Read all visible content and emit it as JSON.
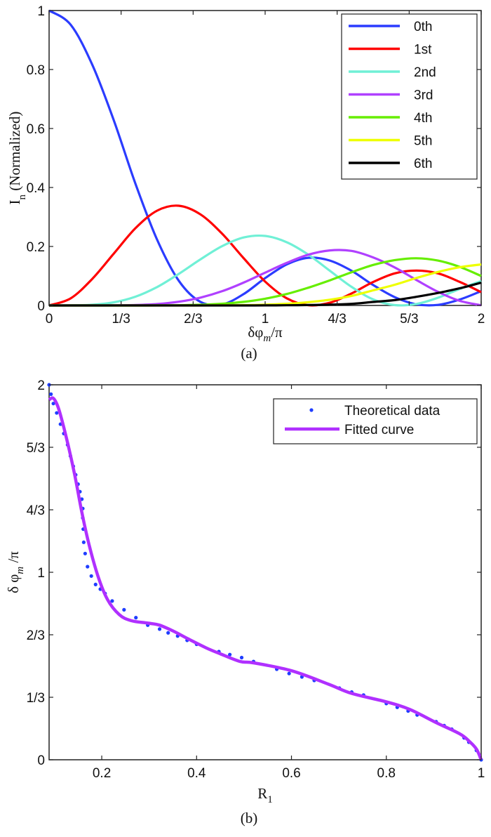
{
  "chart_data": [
    {
      "type": "line",
      "panel_label": "(a)",
      "xlabel": {
        "main": "δφ",
        "sub": "m",
        "rest": "/π"
      },
      "ylabel": {
        "main": "I",
        "sub": "n",
        "rest": " (Normalized)"
      },
      "xlim": [
        0,
        2
      ],
      "ylim": [
        0,
        1
      ],
      "grid": false,
      "legend_position": "top-right",
      "x_ticks": [
        {
          "value": 0,
          "label": "0"
        },
        {
          "value": 0.3333,
          "label": "1/3"
        },
        {
          "value": 0.6667,
          "label": "2/3"
        },
        {
          "value": 1,
          "label": "1"
        },
        {
          "value": 1.3333,
          "label": "4/3"
        },
        {
          "value": 1.6667,
          "label": "5/3"
        },
        {
          "value": 2,
          "label": "2"
        }
      ],
      "y_ticks": [
        {
          "value": 0,
          "label": "0"
        },
        {
          "value": 0.2,
          "label": "0.2"
        },
        {
          "value": 0.4,
          "label": "0.4"
        },
        {
          "value": 0.6,
          "label": "0.6"
        },
        {
          "value": 0.8,
          "label": "0.8"
        },
        {
          "value": 1,
          "label": "1"
        }
      ],
      "x": [
        0,
        0.1,
        0.2,
        0.3,
        0.4,
        0.5,
        0.6,
        0.7,
        0.8,
        0.9,
        1.0,
        1.1,
        1.2,
        1.3,
        1.4,
        1.5,
        1.6,
        1.7,
        1.8,
        1.9,
        2.0
      ],
      "series": [
        {
          "name": "0th",
          "color": "#2b3cff",
          "values": [
            1,
            0.9516,
            0.816,
            0.6266,
            0.4122,
            0.2228,
            0.0841,
            0.0123,
            0.003,
            0.0384,
            0.0925,
            0.1391,
            0.1616,
            0.1521,
            0.1176,
            0.0692,
            0.0282,
            0.0038,
            0.002,
            0.0199,
            0.0485
          ]
        },
        {
          "name": "1st",
          "color": "#ff0000",
          "values": [
            0,
            0.0241,
            0.0902,
            0.1764,
            0.2621,
            0.3215,
            0.3381,
            0.3091,
            0.244,
            0.1608,
            0.081,
            0.0243,
            0.0006,
            0.0094,
            0.0408,
            0.0795,
            0.1089,
            0.1183,
            0.1089,
            0.0801,
            0.0451
          ]
        },
        {
          "name": "2nd",
          "color": "#70f0d6",
          "values": [
            0,
            0.0002,
            0.0023,
            0.0106,
            0.0298,
            0.0625,
            0.1069,
            0.156,
            0.2007,
            0.2304,
            0.2356,
            0.2144,
            0.1722,
            0.1173,
            0.063,
            0.0205,
            0.0013,
            0.0049,
            0.0262,
            0.0557,
            0.0829
          ]
        },
        {
          "name": "3rd",
          "color": "#b040ff",
          "values": [
            0,
            0,
            0,
            0.0003,
            0.0014,
            0.0048,
            0.0126,
            0.0264,
            0.048,
            0.0773,
            0.1112,
            0.1444,
            0.1722,
            0.1866,
            0.1849,
            0.1629,
            0.1289,
            0.0864,
            0.0462,
            0.0156,
            0.0008
          ]
        },
        {
          "name": "4th",
          "color": "#66ee00",
          "values": [
            0,
            0,
            0,
            0,
            0,
            0.0002,
            0.0008,
            0.0023,
            0.0056,
            0.0121,
            0.0229,
            0.0388,
            0.0603,
            0.0853,
            0.1126,
            0.1373,
            0.1537,
            0.16,
            0.1521,
            0.131,
            0.0999
          ]
        },
        {
          "name": "5th",
          "color": "#eeff00",
          "values": [
            0,
            0,
            0,
            0,
            0,
            0,
            0,
            0.0001,
            0.0004,
            0.0011,
            0.0028,
            0.0058,
            0.0112,
            0.0196,
            0.0324,
            0.0511,
            0.0702,
            0.093,
            0.1136,
            0.1296,
            0.1391
          ]
        },
        {
          "name": "6th",
          "color": "#000000",
          "values": [
            0,
            0,
            0,
            0,
            0,
            0,
            0,
            0,
            0,
            0,
            0.0002,
            0.0006,
            0.0014,
            0.0026,
            0.0054,
            0.0119,
            0.0182,
            0.0292,
            0.0424,
            0.0581,
            0.0773
          ]
        }
      ]
    },
    {
      "type": "scatter",
      "panel_label": "(b)",
      "xlabel": {
        "main": "R",
        "sub": "1",
        "rest": ""
      },
      "ylabel": {
        "main": "δ φ",
        "sub": "m",
        "rest": " /π"
      },
      "xlim": [
        0.089,
        1
      ],
      "ylim": [
        0,
        2
      ],
      "grid": false,
      "legend_position": "top-right",
      "x_ticks": [
        {
          "value": 0.2,
          "label": "0.2"
        },
        {
          "value": 0.4,
          "label": "0.4"
        },
        {
          "value": 0.6,
          "label": "0.6"
        },
        {
          "value": 0.8,
          "label": "0.8"
        },
        {
          "value": 1,
          "label": "1"
        }
      ],
      "y_ticks": [
        {
          "value": 0,
          "label": "0"
        },
        {
          "value": 0.3333,
          "label": "1/3"
        },
        {
          "value": 0.6667,
          "label": "2/3"
        },
        {
          "value": 1,
          "label": "1"
        },
        {
          "value": 1.3333,
          "label": "4/3"
        },
        {
          "value": 1.6667,
          "label": "5/3"
        },
        {
          "value": 2,
          "label": "2"
        }
      ],
      "series": [
        {
          "name": "Theoretical data",
          "style": "dots",
          "color": "#1f3dff",
          "points": [
            [
              0.089,
              2.0
            ],
            [
              0.093,
              1.95
            ],
            [
              0.098,
              1.9
            ],
            [
              0.105,
              1.85
            ],
            [
              0.113,
              1.79
            ],
            [
              0.12,
              1.74
            ],
            [
              0.128,
              1.68
            ],
            [
              0.134,
              1.62
            ],
            [
              0.14,
              1.565
            ],
            [
              0.145,
              1.52
            ],
            [
              0.15,
              1.47
            ],
            [
              0.154,
              1.43
            ],
            [
              0.158,
              1.39
            ],
            [
              0.16,
              1.34
            ],
            [
              0.16,
              1.29
            ],
            [
              0.161,
              1.23
            ],
            [
              0.162,
              1.16
            ],
            [
              0.165,
              1.1
            ],
            [
              0.17,
              1.03
            ],
            [
              0.178,
              0.98
            ],
            [
              0.187,
              0.935
            ],
            [
              0.197,
              0.91
            ],
            [
              0.207,
              0.887
            ],
            [
              0.222,
              0.847
            ],
            [
              0.247,
              0.8
            ],
            [
              0.272,
              0.758
            ],
            [
              0.297,
              0.718
            ],
            [
              0.322,
              0.697
            ],
            [
              0.34,
              0.677
            ],
            [
              0.36,
              0.66
            ],
            [
              0.38,
              0.637
            ],
            [
              0.4,
              0.616
            ],
            [
              0.447,
              0.577
            ],
            [
              0.47,
              0.561
            ],
            [
              0.495,
              0.545
            ],
            [
              0.52,
              0.524
            ],
            [
              0.569,
              0.483
            ],
            [
              0.595,
              0.46
            ],
            [
              0.622,
              0.442
            ],
            [
              0.648,
              0.423
            ],
            [
              0.701,
              0.382
            ],
            [
              0.727,
              0.361
            ],
            [
              0.752,
              0.345
            ],
            [
              0.8,
              0.3
            ],
            [
              0.823,
              0.28
            ],
            [
              0.846,
              0.26
            ],
            [
              0.865,
              0.239
            ],
            [
              0.905,
              0.203
            ],
            [
              0.922,
              0.182
            ],
            [
              0.938,
              0.163
            ],
            [
              0.964,
              0.117
            ],
            [
              0.974,
              0.094
            ],
            [
              0.99,
              0.05
            ],
            [
              1.0,
              0.0
            ]
          ]
        },
        {
          "name": "Fitted curve",
          "style": "line",
          "color": "#b030ff",
          "points": [
            [
              0.089,
              1.92
            ],
            [
              0.097,
              1.93
            ],
            [
              0.105,
              1.9
            ],
            [
              0.113,
              1.84
            ],
            [
              0.128,
              1.69
            ],
            [
              0.143,
              1.52
            ],
            [
              0.158,
              1.32
            ],
            [
              0.173,
              1.15
            ],
            [
              0.192,
              0.98
            ],
            [
              0.212,
              0.855
            ],
            [
              0.237,
              0.774
            ],
            [
              0.262,
              0.742
            ],
            [
              0.297,
              0.729
            ],
            [
              0.322,
              0.718
            ],
            [
              0.352,
              0.685
            ],
            [
              0.382,
              0.645
            ],
            [
              0.42,
              0.597
            ],
            [
              0.45,
              0.565
            ],
            [
              0.492,
              0.524
            ],
            [
              0.52,
              0.517
            ],
            [
              0.6,
              0.475
            ],
            [
              0.678,
              0.403
            ],
            [
              0.727,
              0.354
            ],
            [
              0.8,
              0.309
            ],
            [
              0.85,
              0.268
            ],
            [
              0.905,
              0.198
            ],
            [
              0.955,
              0.138
            ],
            [
              0.975,
              0.098
            ],
            [
              0.99,
              0.057
            ],
            [
              1.0,
              0.0
            ]
          ]
        }
      ]
    }
  ]
}
